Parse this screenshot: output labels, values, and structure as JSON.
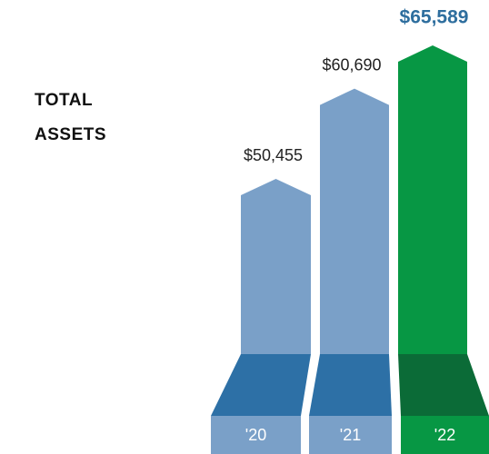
{
  "chart_data": {
    "type": "bar",
    "title": "TOTAL ASSETS",
    "categories": [
      "'20",
      "'21",
      "'22"
    ],
    "values": [
      50455,
      60690,
      65589
    ],
    "value_labels": [
      "$50,455",
      "$60,690",
      "$65,589"
    ],
    "colors": [
      "#7aa0c8",
      "#7aa0c8",
      "#079744"
    ],
    "base_colors": [
      "#2d70a6",
      "#2d70a6",
      "#0b6b37"
    ],
    "highlight_color": "#2e6e9e"
  }
}
